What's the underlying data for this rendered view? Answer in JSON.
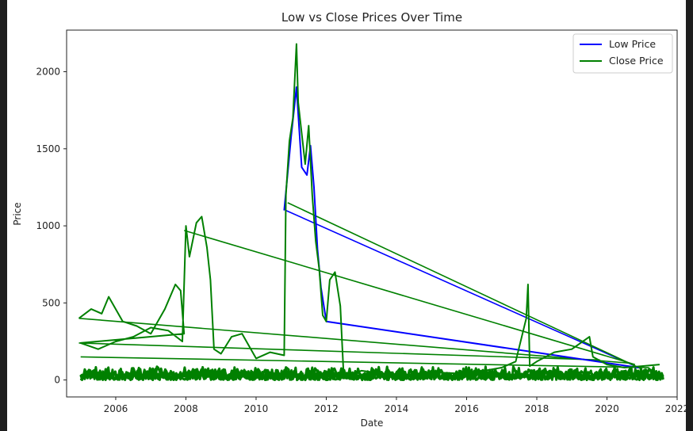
{
  "chart_data": {
    "type": "line",
    "title": "Low vs Close Prices Over Time",
    "xlabel": "Date",
    "ylabel": "Price",
    "xlim": [
      2004.6,
      2022.0
    ],
    "ylim": [
      -110,
      2270
    ],
    "x_ticks": [
      2006,
      2008,
      2010,
      2012,
      2014,
      2016,
      2018,
      2020,
      2022
    ],
    "y_ticks": [
      0,
      500,
      1000,
      1500,
      2000
    ],
    "grid": false,
    "legend_position": "upper right",
    "series": [
      {
        "name": "Low Price",
        "color": "#0000ff",
        "x": [
          2010.8,
          2011.0,
          2011.15,
          2011.3,
          2011.45,
          2011.55,
          2011.65,
          2011.75,
          2011.85,
          2012.0,
          2020.9
        ],
        "y": [
          1100,
          1580,
          1900,
          1380,
          1330,
          1520,
          1250,
          850,
          600,
          380,
          80
        ]
      },
      {
        "name": "Close Price",
        "color": "#008000",
        "x": [
          2004.95,
          2005.3,
          2005.6,
          2005.8,
          2006.2,
          2006.6,
          2007.0,
          2007.4,
          2007.7,
          2007.85,
          2007.95,
          2005.0,
          2005.5,
          2006.0,
          2006.5,
          2007.0,
          2007.5,
          2007.9,
          2008.0,
          2008.1,
          2008.3,
          2008.45,
          2008.6,
          2008.7,
          2008.8,
          2009.0,
          2009.3,
          2009.6,
          2010.0,
          2010.4,
          2010.8,
          2010.85,
          2010.95,
          2011.05,
          2011.15,
          2011.2,
          2011.3,
          2011.4,
          2011.5,
          2011.6,
          2011.7,
          2011.8,
          2011.9,
          2012.0,
          2012.1,
          2012.25,
          2012.4,
          2012.5,
          2013.0,
          2014.0,
          2015.0,
          2016.0,
          2017.0,
          2017.4,
          2017.7,
          2017.75,
          2017.8,
          2018.0,
          2018.5,
          2019.0,
          2019.5,
          2019.6,
          2020.0,
          2020.5,
          2021.0,
          2021.5
        ],
        "y": [
          400,
          460,
          430,
          540,
          380,
          350,
          300,
          460,
          620,
          580,
          300,
          240,
          200,
          250,
          280,
          340,
          320,
          250,
          1000,
          800,
          1020,
          1060,
          860,
          650,
          200,
          170,
          280,
          300,
          140,
          180,
          160,
          1200,
          1550,
          1700,
          2180,
          1800,
          1600,
          1400,
          1650,
          1200,
          900,
          720,
          420,
          380,
          650,
          700,
          480,
          10,
          60,
          30,
          50,
          40,
          80,
          120,
          400,
          620,
          90,
          120,
          180,
          200,
          280,
          150,
          100,
          80,
          90,
          100
        ]
      }
    ],
    "connector_lines": [
      {
        "series": "Low Price",
        "x": [
          2010.85,
          2020.9
        ],
        "y": [
          1100,
          80
        ]
      },
      {
        "series": "Close Price",
        "x": [
          2010.9,
          2021.0
        ],
        "y": [
          1150,
          70
        ]
      },
      {
        "series": "Close Price",
        "x": [
          2007.95,
          2020.8
        ],
        "y": [
          970,
          100
        ]
      },
      {
        "series": "Close Price",
        "x": [
          2004.95,
          2020.6
        ],
        "y": [
          400,
          110
        ]
      },
      {
        "series": "Close Price",
        "x": [
          2004.95,
          2019.8
        ],
        "y": [
          240,
          130
        ]
      },
      {
        "series": "Close Price",
        "x": [
          2005.0,
          2021.2
        ],
        "y": [
          150,
          80
        ]
      }
    ],
    "noise_band": {
      "x": [
        2005.0,
        2021.6
      ],
      "y_low": 0,
      "y_high": 90
    }
  }
}
